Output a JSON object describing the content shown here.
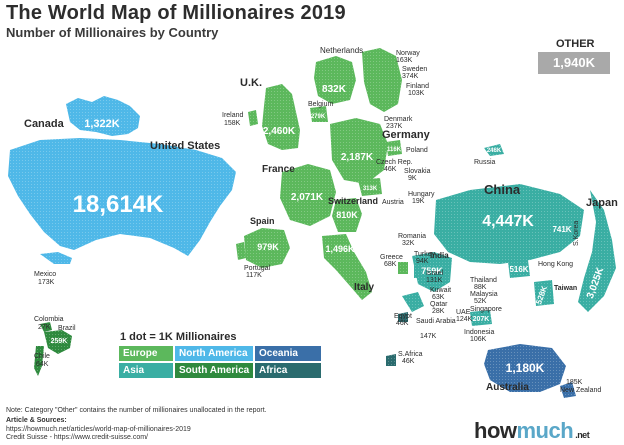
{
  "title": "The World Map of Millionaires 2019",
  "subtitle": "Number of Millionaires by Country",
  "other": {
    "label": "OTHER",
    "value": "1,940K"
  },
  "legend": {
    "title": "1 dot = 1K Millionaires",
    "items": [
      {
        "label": "Europe",
        "color": "#5cb85c"
      },
      {
        "label": "North America",
        "color": "#4fb8e8"
      },
      {
        "label": "Oceania",
        "color": "#3a6fa8"
      },
      {
        "label": "Asia",
        "color": "#3aaea3"
      },
      {
        "label": "South America",
        "color": "#2f8a3e"
      },
      {
        "label": "Africa",
        "color": "#2a6b6e"
      }
    ]
  },
  "colors": {
    "europe": "#5cb85c",
    "north_america": "#4fb8e8",
    "oceania": "#3a6fa8",
    "asia": "#3aaea3",
    "south_america": "#2f8a3e",
    "africa": "#2a6b6e",
    "other": "#a9a9a9"
  },
  "countries": {
    "united_states": {
      "name": "United States",
      "value": "18,614K"
    },
    "canada": {
      "name": "Canada",
      "value": "1,322K"
    },
    "mexico": {
      "name": "Mexico",
      "value": "173K"
    },
    "colombia": {
      "name": "Colombia",
      "value": "27K"
    },
    "brazil": {
      "name": "Brazil",
      "value": "259K"
    },
    "chile": {
      "name": "Chile",
      "value": "64K"
    },
    "uk": {
      "name": "U.K.",
      "value": "2,460K"
    },
    "ireland": {
      "name": "Ireland",
      "value": "158K"
    },
    "netherlands": {
      "name": "Netherlands",
      "value": "832K"
    },
    "belgium": {
      "name": "Belgium",
      "value": "279K"
    },
    "norway": {
      "name": "Norway",
      "value": "163K"
    },
    "sweden": {
      "name": "Sweden",
      "value": "374K"
    },
    "finland": {
      "name": "Finland",
      "value": "103K"
    },
    "denmark": {
      "name": "Denmark",
      "value": "237K"
    },
    "germany": {
      "name": "Germany",
      "value": "2,187K"
    },
    "poland": {
      "name": "Poland",
      "value": "116K"
    },
    "czech": {
      "name": "Czech Rep.",
      "value": "46K"
    },
    "slovakia": {
      "name": "Slovakia",
      "value": "9K"
    },
    "hungary": {
      "name": "Hungary",
      "value": "19K"
    },
    "austria": {
      "name": "Austria",
      "value": "313K"
    },
    "france": {
      "name": "France",
      "value": "2,071K"
    },
    "switzerland": {
      "name": "Switzerland",
      "value": "810K"
    },
    "spain": {
      "name": "Spain",
      "value": "979K"
    },
    "portugal": {
      "name": "Portugal",
      "value": "117K"
    },
    "italy": {
      "name": "Italy",
      "value": "1,496K"
    },
    "romania": {
      "name": "Romania",
      "value": "32K"
    },
    "greece": {
      "name": "Greece",
      "value": "68K"
    },
    "turkey": {
      "name": "Turkey",
      "value": "94K"
    },
    "israel": {
      "name": "Israel",
      "value": "131K"
    },
    "russia": {
      "name": "Russia",
      "value": "246K"
    },
    "china": {
      "name": "China",
      "value": "4,447K"
    },
    "japan": {
      "name": "Japan",
      "value": "3,025K"
    },
    "skorea": {
      "name": "S.Korea",
      "value": "741K"
    },
    "india": {
      "name": "India",
      "value": "759K"
    },
    "hongkong": {
      "name": "Hong Kong",
      "value": "516K"
    },
    "taiwan": {
      "name": "Taiwan",
      "value": "528K"
    },
    "thailand": {
      "name": "Thailand",
      "value": "88K"
    },
    "malaysia": {
      "name": "Malaysia",
      "value": "52K"
    },
    "singapore": {
      "name": "Singapore",
      "value": "207K"
    },
    "indonesia": {
      "name": "Indonesia",
      "value": "106K"
    },
    "kuwait": {
      "name": "Kuwait",
      "value": "63K"
    },
    "qatar": {
      "name": "Qatar",
      "value": "28K"
    },
    "saudi": {
      "name": "Saudi Arabia",
      "value": "147K"
    },
    "uae": {
      "name": "UAE",
      "value": "124K"
    },
    "egypt": {
      "name": "Egypt",
      "value": "46K"
    },
    "safrica": {
      "name": "S.Africa",
      "value": "46K"
    },
    "australia": {
      "name": "Australia",
      "value": "1,180K"
    },
    "newzealand": {
      "name": "New Zealand",
      "value": "185K"
    }
  },
  "footer": {
    "note": "Note: Category \"Other\" contains the number of millionaires unallocated in the report.",
    "sources_heading": "Article & Sources:",
    "source1": "https://howmuch.net/articles/world-map-of-millionaires-2019",
    "source2": "Credit Suisse - https://www.credit-suisse.com/"
  },
  "brand": {
    "how": "how",
    "much": "much",
    "domain": ".net"
  }
}
